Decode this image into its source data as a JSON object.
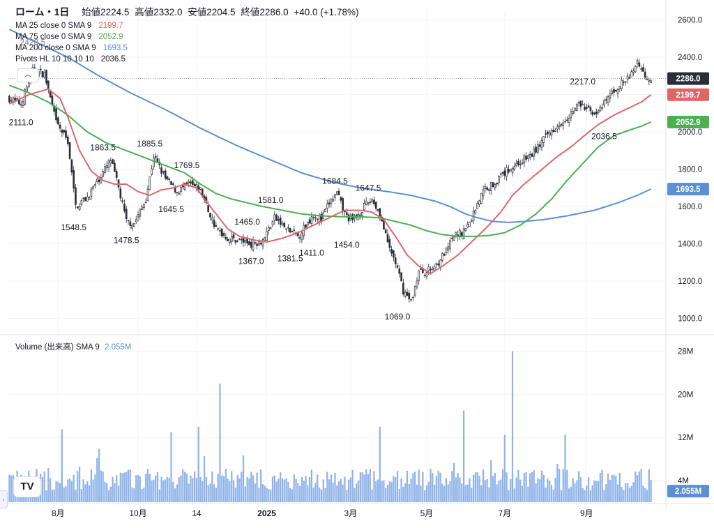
{
  "header": {
    "symbol": "ローム・1日",
    "open_label": "始値",
    "open": "2224.5",
    "high_label": "高値",
    "high": "2332.0",
    "low_label": "安値",
    "low": "2204.5",
    "close_label": "終値",
    "close": "2286.0",
    "change": "+40.0 (+1.78%)"
  },
  "indicators": [
    {
      "label": "MA 25 close 0 SMA 9",
      "value": "2199.7",
      "color": "#e06666"
    },
    {
      "label": "MA 75 close 0 SMA 9",
      "value": "2052.9",
      "color": "#4caf50"
    },
    {
      "label": "MA 200 close 0 SMA 9",
      "value": "1693.5",
      "color": "#5b8fd6"
    },
    {
      "label": "Pivots HL 10 10 10 10",
      "value": "2036.5",
      "color": "#131722"
    }
  ],
  "ghost_label": "2428.5",
  "collapse_icon": "chevron-up-icon",
  "volume_legend": {
    "label": "Volume (出来高) SMA 9",
    "value": "2.055M",
    "color": "#5b8fd6"
  },
  "price_badges": [
    {
      "value": "2286.0",
      "price": 2286,
      "color": "#2a2e39"
    },
    {
      "value": "2199.7",
      "price": 2199.7,
      "color": "#e06666"
    },
    {
      "value": "2052.9",
      "price": 2052.9,
      "color": "#4caf50"
    },
    {
      "value": "1693.5",
      "price": 1693.5,
      "color": "#5b8fd6"
    }
  ],
  "volume_badge": {
    "value": "2.055M",
    "volume": 2.055,
    "color": "#5b8fd6"
  },
  "chart_data": {
    "type": "candlestick",
    "price_axis": {
      "range": [
        920,
        2640
      ],
      "ticks": [
        "1000.0",
        "1200.0",
        "1400.0",
        "1600.0",
        "1800.0",
        "2000.0",
        "2200.0",
        "2400.0",
        "2600.0"
      ],
      "tick_values": [
        1000,
        1200,
        1400,
        1600,
        1800,
        2000,
        2200,
        2400,
        2600
      ]
    },
    "volume_axis": {
      "range": [
        0,
        30
      ],
      "unit": "M",
      "ticks": [
        "4M",
        "12M",
        "20M",
        "28M"
      ],
      "tick_values": [
        4,
        12,
        20,
        28
      ]
    },
    "time_axis": {
      "labels": [
        "8月",
        "10月",
        "14",
        "2025",
        "3月",
        "5月",
        "7月",
        "9月"
      ],
      "bar_index": [
        25,
        66,
        96,
        132,
        175,
        214,
        254,
        296
      ]
    },
    "bar_count": 330,
    "last_close_line": 2286,
    "pivot_labels": [
      {
        "text": "2428.5",
        "bar": 12,
        "price": 2428.5,
        "pos": "above"
      },
      {
        "text": "2111.0",
        "bar": 6,
        "price": 2111.0,
        "pos": "below"
      },
      {
        "text": "1863.5",
        "bar": 48,
        "price": 1863.5,
        "pos": "above"
      },
      {
        "text": "1885.5",
        "bar": 72,
        "price": 1885.5,
        "pos": "above"
      },
      {
        "text": "1769.5",
        "bar": 91,
        "price": 1769.5,
        "pos": "above"
      },
      {
        "text": "1548.5",
        "bar": 33,
        "price": 1548.5,
        "pos": "below"
      },
      {
        "text": "1478.5",
        "bar": 60,
        "price": 1478.5,
        "pos": "below"
      },
      {
        "text": "1645.5",
        "bar": 83,
        "price": 1645.5,
        "pos": "below"
      },
      {
        "text": "1581.0",
        "bar": 134,
        "price": 1581.0,
        "pos": "above"
      },
      {
        "text": "1465.0",
        "bar": 122,
        "price": 1465.0,
        "pos": "above"
      },
      {
        "text": "1367.0",
        "bar": 124,
        "price": 1367.0,
        "pos": "below"
      },
      {
        "text": "1381.5",
        "bar": 144,
        "price": 1381.5,
        "pos": "below"
      },
      {
        "text": "1411.0",
        "bar": 155,
        "price": 1411.0,
        "pos": "below"
      },
      {
        "text": "1684.5",
        "bar": 167,
        "price": 1684.5,
        "pos": "above"
      },
      {
        "text": "1647.5",
        "bar": 184,
        "price": 1647.5,
        "pos": "above"
      },
      {
        "text": "1454.0",
        "bar": 173,
        "price": 1454.0,
        "pos": "below"
      },
      {
        "text": "1069.0",
        "bar": 199,
        "price": 1069.0,
        "pos": "below"
      },
      {
        "text": "2217.0",
        "bar": 294,
        "price": 2217.0,
        "pos": "above"
      },
      {
        "text": "2036.5",
        "bar": 305,
        "price": 2036.5,
        "pos": "below"
      }
    ],
    "close_path": [
      [
        0,
        2180
      ],
      [
        6,
        2150
      ],
      [
        12,
        2330
      ],
      [
        18,
        2310
      ],
      [
        24,
        2050
      ],
      [
        30,
        1950
      ],
      [
        34,
        1600
      ],
      [
        40,
        1650
      ],
      [
        46,
        1750
      ],
      [
        52,
        1850
      ],
      [
        56,
        1700
      ],
      [
        60,
        1520
      ],
      [
        64,
        1510
      ],
      [
        70,
        1640
      ],
      [
        74,
        1870
      ],
      [
        80,
        1750
      ],
      [
        86,
        1680
      ],
      [
        92,
        1720
      ],
      [
        98,
        1690
      ],
      [
        102,
        1580
      ],
      [
        106,
        1480
      ],
      [
        112,
        1430
      ],
      [
        118,
        1420
      ],
      [
        124,
        1400
      ],
      [
        130,
        1420
      ],
      [
        136,
        1540
      ],
      [
        142,
        1480
      ],
      [
        148,
        1440
      ],
      [
        152,
        1500
      ],
      [
        156,
        1560
      ],
      [
        160,
        1530
      ],
      [
        164,
        1620
      ],
      [
        168,
        1670
      ],
      [
        172,
        1560
      ],
      [
        176,
        1520
      ],
      [
        182,
        1600
      ],
      [
        186,
        1640
      ],
      [
        190,
        1560
      ],
      [
        194,
        1400
      ],
      [
        198,
        1300
      ],
      [
        202,
        1150
      ],
      [
        206,
        1090
      ],
      [
        210,
        1250
      ],
      [
        214,
        1250
      ],
      [
        218,
        1280
      ],
      [
        224,
        1360
      ],
      [
        228,
        1440
      ],
      [
        232,
        1460
      ],
      [
        236,
        1510
      ],
      [
        240,
        1620
      ],
      [
        244,
        1700
      ],
      [
        248,
        1720
      ],
      [
        252,
        1760
      ],
      [
        256,
        1800
      ],
      [
        262,
        1840
      ],
      [
        268,
        1880
      ],
      [
        274,
        1960
      ],
      [
        280,
        2030
      ],
      [
        286,
        2080
      ],
      [
        292,
        2150
      ],
      [
        296,
        2120
      ],
      [
        302,
        2100
      ],
      [
        308,
        2200
      ],
      [
        314,
        2260
      ],
      [
        318,
        2290
      ],
      [
        322,
        2380
      ],
      [
        326,
        2300
      ],
      [
        329,
        2286
      ]
    ],
    "ma25": [
      [
        0,
        2150
      ],
      [
        10,
        2200
      ],
      [
        20,
        2230
      ],
      [
        26,
        2180
      ],
      [
        30,
        2080
      ],
      [
        36,
        1900
      ],
      [
        42,
        1790
      ],
      [
        48,
        1740
      ],
      [
        54,
        1720
      ],
      [
        60,
        1720
      ],
      [
        66,
        1680
      ],
      [
        72,
        1660
      ],
      [
        78,
        1690
      ],
      [
        84,
        1700
      ],
      [
        90,
        1720
      ],
      [
        96,
        1700
      ],
      [
        100,
        1640
      ],
      [
        106,
        1560
      ],
      [
        112,
        1480
      ],
      [
        118,
        1440
      ],
      [
        126,
        1420
      ],
      [
        132,
        1410
      ],
      [
        140,
        1430
      ],
      [
        148,
        1460
      ],
      [
        156,
        1500
      ],
      [
        164,
        1540
      ],
      [
        172,
        1580
      ],
      [
        180,
        1580
      ],
      [
        186,
        1570
      ],
      [
        192,
        1530
      ],
      [
        198,
        1440
      ],
      [
        204,
        1340
      ],
      [
        210,
        1280
      ],
      [
        216,
        1240
      ],
      [
        222,
        1280
      ],
      [
        230,
        1340
      ],
      [
        236,
        1400
      ],
      [
        244,
        1480
      ],
      [
        252,
        1570
      ],
      [
        258,
        1660
      ],
      [
        264,
        1720
      ],
      [
        272,
        1790
      ],
      [
        280,
        1860
      ],
      [
        288,
        1920
      ],
      [
        296,
        1990
      ],
      [
        302,
        2040
      ],
      [
        310,
        2090
      ],
      [
        318,
        2130
      ],
      [
        324,
        2160
      ],
      [
        329,
        2199.7
      ]
    ],
    "ma75": [
      [
        0,
        2250
      ],
      [
        10,
        2210
      ],
      [
        20,
        2160
      ],
      [
        30,
        2090
      ],
      [
        40,
        2000
      ],
      [
        50,
        1940
      ],
      [
        60,
        1900
      ],
      [
        70,
        1860
      ],
      [
        80,
        1820
      ],
      [
        90,
        1780
      ],
      [
        98,
        1720
      ],
      [
        106,
        1670
      ],
      [
        114,
        1640
      ],
      [
        122,
        1620
      ],
      [
        130,
        1600
      ],
      [
        140,
        1580
      ],
      [
        150,
        1560
      ],
      [
        160,
        1550
      ],
      [
        170,
        1545
      ],
      [
        180,
        1545
      ],
      [
        190,
        1540
      ],
      [
        198,
        1520
      ],
      [
        206,
        1500
      ],
      [
        214,
        1470
      ],
      [
        222,
        1450
      ],
      [
        230,
        1440
      ],
      [
        238,
        1440
      ],
      [
        246,
        1445
      ],
      [
        254,
        1460
      ],
      [
        262,
        1500
      ],
      [
        270,
        1560
      ],
      [
        278,
        1640
      ],
      [
        286,
        1740
      ],
      [
        294,
        1830
      ],
      [
        302,
        1920
      ],
      [
        310,
        1980
      ],
      [
        318,
        2010
      ],
      [
        324,
        2030
      ],
      [
        329,
        2052.9
      ]
    ],
    "ma200": [
      [
        0,
        2550
      ],
      [
        14,
        2480
      ],
      [
        30,
        2400
      ],
      [
        46,
        2300
      ],
      [
        62,
        2210
      ],
      [
        80,
        2120
      ],
      [
        98,
        2020
      ],
      [
        116,
        1930
      ],
      [
        134,
        1850
      ],
      [
        150,
        1780
      ],
      [
        166,
        1730
      ],
      [
        180,
        1700
      ],
      [
        194,
        1680
      ],
      [
        206,
        1660
      ],
      [
        218,
        1630
      ],
      [
        226,
        1600
      ],
      [
        234,
        1560
      ],
      [
        240,
        1540
      ],
      [
        248,
        1520
      ],
      [
        256,
        1515
      ],
      [
        264,
        1520
      ],
      [
        274,
        1530
      ],
      [
        286,
        1550
      ],
      [
        300,
        1580
      ],
      [
        312,
        1620
      ],
      [
        322,
        1660
      ],
      [
        329,
        1693.5
      ]
    ],
    "volume_sma": 2.055
  }
}
